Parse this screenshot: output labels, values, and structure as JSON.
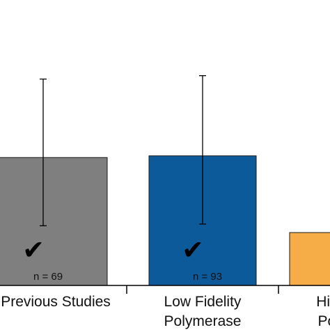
{
  "chart_data": {
    "type": "bar",
    "title": "",
    "xlabel": "",
    "ylabel": "",
    "categories": [
      [
        "Previous Studies"
      ],
      [
        "Low Fidelity",
        "Polymerase"
      ],
      [
        "High Fidelity",
        "Polymerase"
      ]
    ],
    "values": [
      0.75,
      0.76,
      0.31
    ],
    "error_low": [
      0.35,
      0.36,
      null
    ],
    "error_high": [
      1.21,
      1.23,
      null
    ],
    "n_labels": [
      "n = 69",
      "n = 93",
      ""
    ],
    "check_marks": [
      true,
      true,
      false
    ],
    "check_glyph": "✔",
    "colors": [
      "#7f7f7f",
      "#0d5a9b",
      "#f6ad47"
    ],
    "ylim": [
      0,
      1.3
    ],
    "grid": false,
    "legend": "none"
  }
}
